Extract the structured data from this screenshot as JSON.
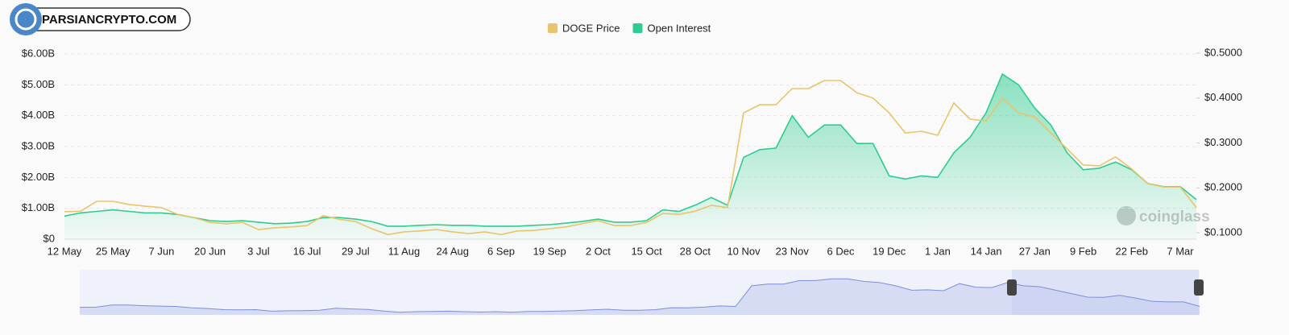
{
  "chart_data": {
    "type": "line",
    "logo": "PARSIANCRYPTO.COM",
    "watermark": "coinglass",
    "categories": [
      "12 May",
      null,
      null,
      "25 May",
      null,
      null,
      "7 Jun",
      null,
      null,
      "20 Jun",
      null,
      null,
      "3 Jul",
      null,
      null,
      "16 Jul",
      null,
      null,
      "29 Jul",
      null,
      null,
      "11 Aug",
      null,
      null,
      "24 Aug",
      null,
      null,
      "6 Sep",
      null,
      null,
      "19 Sep",
      null,
      null,
      "2 Oct",
      null,
      null,
      "15 Oct",
      null,
      null,
      "28 Oct",
      null,
      null,
      "10 Nov",
      null,
      null,
      "23 Nov",
      null,
      null,
      "6 Dec",
      null,
      null,
      "19 Dec",
      null,
      null,
      "1 Jan",
      null,
      null,
      "14 Jan",
      null,
      null,
      "27 Jan",
      null,
      null,
      "9 Feb",
      null,
      null,
      "22 Feb",
      null,
      null,
      "7 Mar",
      null
    ],
    "series": [
      {
        "name": "DOGE Price",
        "color": "#e9c46a",
        "axis": "y2",
        "area": false,
        "values": [
          0.147,
          0.148,
          0.17,
          0.17,
          0.163,
          0.159,
          0.156,
          0.141,
          0.134,
          0.123,
          0.12,
          0.123,
          0.107,
          0.111,
          0.113,
          0.116,
          0.138,
          0.13,
          0.125,
          0.109,
          0.096,
          0.102,
          0.104,
          0.107,
          0.102,
          0.098,
          0.102,
          0.096,
          0.104,
          0.105,
          0.109,
          0.113,
          0.12,
          0.127,
          0.116,
          0.116,
          0.123,
          0.143,
          0.141,
          0.148,
          0.161,
          0.156,
          0.367,
          0.385,
          0.385,
          0.421,
          0.421,
          0.439,
          0.439,
          0.412,
          0.4,
          0.367,
          0.322,
          0.326,
          0.317,
          0.389,
          0.353,
          0.349,
          0.4,
          0.367,
          0.358,
          0.322,
          0.287,
          0.251,
          0.249,
          0.269,
          0.242,
          0.209,
          0.202,
          0.202,
          0.156
        ]
      },
      {
        "name": "Open Interest",
        "color": "#2ecc8f",
        "area": true,
        "values": [
          0.75,
          0.85,
          0.9,
          0.95,
          0.9,
          0.85,
          0.85,
          0.8,
          0.7,
          0.6,
          0.57,
          0.6,
          0.55,
          0.5,
          0.52,
          0.57,
          0.7,
          0.7,
          0.65,
          0.57,
          0.42,
          0.42,
          0.45,
          0.47,
          0.45,
          0.45,
          0.42,
          0.42,
          0.42,
          0.45,
          0.47,
          0.52,
          0.57,
          0.65,
          0.55,
          0.55,
          0.6,
          0.95,
          0.9,
          1.1,
          1.35,
          1.1,
          2.65,
          2.9,
          2.95,
          4.0,
          3.3,
          3.7,
          3.7,
          3.1,
          3.1,
          2.05,
          1.95,
          2.05,
          2.0,
          2.8,
          3.3,
          4.1,
          5.35,
          5.0,
          4.25,
          3.7,
          2.8,
          2.25,
          2.3,
          2.5,
          2.25,
          1.8,
          1.7,
          1.7,
          1.28
        ]
      }
    ],
    "ylim": [
      0,
      6
    ],
    "yticks": [
      {
        "value": 0,
        "label": "$0"
      },
      {
        "value": 1,
        "label": "$1.00B"
      },
      {
        "value": 2,
        "label": "$2.00B"
      },
      {
        "value": 3,
        "label": "$3.00B"
      },
      {
        "value": 4,
        "label": "$4.00B"
      },
      {
        "value": 5,
        "label": "$5.00B"
      },
      {
        "value": 6,
        "label": "$6.00B"
      }
    ],
    "y2lim": [
      0.0857,
      0.4982
    ],
    "y2ticks": [
      {
        "value": 0.1,
        "label": "$0.1000"
      },
      {
        "value": 0.2,
        "label": "$0.2000"
      },
      {
        "value": 0.3,
        "label": "$0.3000"
      },
      {
        "value": 0.4,
        "label": "$0.4000"
      },
      {
        "value": 0.5,
        "label": "$0.5000"
      }
    ],
    "grid": true,
    "legend": "top"
  }
}
